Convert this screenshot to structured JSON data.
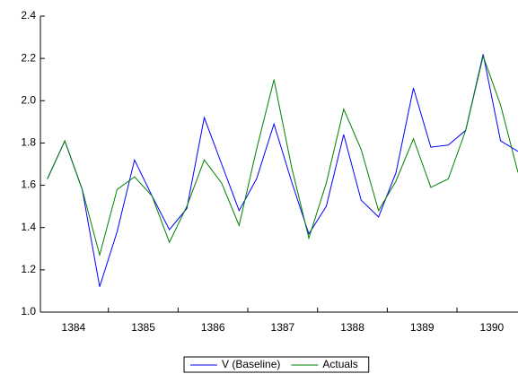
{
  "chart_data": {
    "type": "line",
    "x": [
      1384,
      1384.25,
      1384.5,
      1384.75,
      1385,
      1385.25,
      1385.5,
      1385.75,
      1386,
      1386.25,
      1386.5,
      1386.75,
      1387,
      1387.25,
      1387.5,
      1387.75,
      1388,
      1388.25,
      1388.5,
      1388.75,
      1389,
      1389.25,
      1389.5,
      1389.75,
      1390,
      1390.25,
      1390.5,
      1390.75
    ],
    "series": [
      {
        "name": "V (Baseline)",
        "color": "#0000ff",
        "values": [
          1.63,
          1.81,
          1.58,
          1.12,
          1.38,
          1.72,
          1.55,
          1.39,
          1.49,
          1.92,
          1.7,
          1.48,
          1.63,
          1.89,
          1.62,
          1.37,
          1.5,
          1.84,
          1.53,
          1.45,
          1.66,
          2.06,
          1.78,
          1.79,
          1.86,
          2.22,
          1.81,
          1.76
        ]
      },
      {
        "name": "Actuals",
        "color": "#008000",
        "values": [
          1.63,
          1.81,
          1.58,
          1.27,
          1.58,
          1.64,
          1.55,
          1.33,
          1.5,
          1.72,
          1.61,
          1.41,
          1.77,
          2.1,
          1.69,
          1.35,
          1.61,
          1.96,
          1.77,
          1.48,
          1.62,
          1.82,
          1.59,
          1.63,
          1.86,
          2.21,
          1.98,
          1.66
        ]
      }
    ],
    "xlim": [
      1383.9,
      1390.75
    ],
    "xticks": [
      {
        "value": 1384.375,
        "label": "1384"
      },
      {
        "value": 1385.375,
        "label": "1385"
      },
      {
        "value": 1386.375,
        "label": "1386"
      },
      {
        "value": 1387.375,
        "label": "1387"
      },
      {
        "value": 1388.375,
        "label": "1388"
      },
      {
        "value": 1389.375,
        "label": "1389"
      },
      {
        "value": 1390.375,
        "label": "1390"
      }
    ],
    "ylim": [
      1.0,
      2.4
    ],
    "yticks": [
      {
        "value": 1.0,
        "label": "1.0"
      },
      1.2,
      1.4,
      1.6,
      1.8,
      {
        "value": 2.0,
        "label": "2.0"
      },
      2.2,
      2.4
    ],
    "legend": "bottom"
  }
}
